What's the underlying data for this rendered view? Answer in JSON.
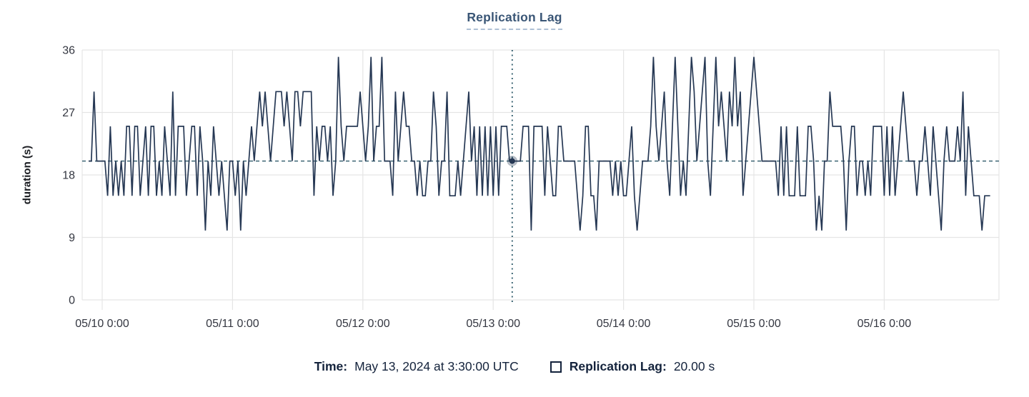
{
  "footer": {
    "time_label": "Time:",
    "time_value": "May 13, 2024 at 3:30:00 UTC",
    "series_label": "Replication Lag:",
    "series_value": "20.00 s"
  },
  "colors": {
    "series_line": "#263854",
    "crosshair": "#2e5a6a",
    "grid": "#e5e5e5",
    "tick_text": "#343741",
    "title_text": "#3a5676",
    "footer_text": "#14233c"
  },
  "chart_data": {
    "type": "line",
    "title": "Replication Lag",
    "xlabel": "",
    "ylabel": "duration (s)",
    "ylim": [
      0,
      36
    ],
    "yticks": [
      0,
      9,
      18,
      27,
      36
    ],
    "grid": true,
    "legend_position": "bottom",
    "x_start": "2024-05-09 21:30 UTC",
    "x_step_minutes": 30,
    "xticks": [
      {
        "index": 5,
        "label": "05/10 0:00"
      },
      {
        "index": 53,
        "label": "05/11 0:00"
      },
      {
        "index": 101,
        "label": "05/12 0:00"
      },
      {
        "index": 149,
        "label": "05/13 0:00"
      },
      {
        "index": 197,
        "label": "05/14 0:00"
      },
      {
        "index": 245,
        "label": "05/15 0:00"
      },
      {
        "index": 293,
        "label": "05/16 0:00"
      }
    ],
    "crosshair": {
      "index": 156,
      "value": 20,
      "time_label": "May 13, 2024 at 3:30:00 UTC",
      "value_label": "20.00 s"
    },
    "series": [
      {
        "name": "Replication Lag",
        "color": "#263854",
        "values": [
          20,
          20,
          30,
          20,
          20,
          20,
          20,
          15,
          25,
          15,
          20,
          15,
          20,
          15,
          25,
          25,
          15,
          25,
          25,
          15,
          20,
          25,
          15,
          25,
          25,
          15,
          20,
          15,
          25,
          20,
          15,
          30,
          15,
          25,
          25,
          25,
          15,
          20,
          25,
          25,
          15,
          25,
          20,
          10,
          20,
          15,
          25,
          20,
          15,
          20,
          15,
          10,
          20,
          20,
          15,
          20,
          10,
          20,
          15,
          20,
          25,
          20,
          25,
          30,
          25,
          30,
          25,
          20,
          25,
          30,
          30,
          30,
          25,
          30,
          25,
          20,
          30,
          30,
          25,
          30,
          30,
          30,
          30,
          15,
          25,
          20,
          25,
          25,
          20,
          25,
          15,
          20,
          35,
          25,
          20,
          25,
          25,
          25,
          25,
          25,
          30,
          25,
          20,
          25,
          35,
          20,
          25,
          25,
          35,
          20,
          20,
          20,
          15,
          30,
          20,
          25,
          30,
          25,
          25,
          20,
          20,
          15,
          20,
          15,
          15,
          20,
          20,
          30,
          25,
          15,
          20,
          20,
          30,
          15,
          15,
          15,
          20,
          15,
          20,
          25,
          30,
          20,
          25,
          15,
          25,
          15,
          25,
          15,
          25,
          15,
          25,
          15,
          25,
          25,
          25,
          20,
          20,
          20,
          20,
          20,
          25,
          25,
          25,
          10,
          25,
          25,
          25,
          25,
          15,
          25,
          20,
          15,
          15,
          25,
          25,
          20,
          20,
          20,
          20,
          20,
          15,
          10,
          15,
          25,
          25,
          15,
          15,
          10,
          20,
          20,
          20,
          20,
          20,
          15,
          20,
          15,
          20,
          15,
          15,
          20,
          25,
          15,
          10,
          15,
          20,
          20,
          20,
          25,
          35,
          25,
          20,
          25,
          30,
          20,
          15,
          25,
          35,
          25,
          15,
          20,
          15,
          25,
          35,
          30,
          20,
          25,
          30,
          35,
          20,
          15,
          25,
          35,
          25,
          30,
          25,
          20,
          30,
          25,
          35,
          25,
          30,
          15,
          20,
          25,
          30,
          35,
          30,
          25,
          20,
          20,
          20,
          20,
          20,
          20,
          15,
          25,
          15,
          25,
          15,
          15,
          15,
          25,
          15,
          15,
          15,
          25,
          25,
          20,
          10,
          15,
          10,
          20,
          20,
          30,
          25,
          25,
          25,
          25,
          20,
          10,
          20,
          25,
          25,
          15,
          20,
          20,
          15,
          20,
          15,
          25,
          25,
          25,
          25,
          15,
          25,
          15,
          25,
          15,
          20,
          25,
          30,
          25,
          20,
          20,
          20,
          15,
          20,
          20,
          25,
          20,
          15,
          25,
          20,
          15,
          10,
          20,
          25,
          20,
          20,
          20,
          25,
          20,
          30,
          15,
          25,
          20,
          15,
          15,
          15,
          10,
          15,
          15,
          15
        ]
      }
    ]
  }
}
